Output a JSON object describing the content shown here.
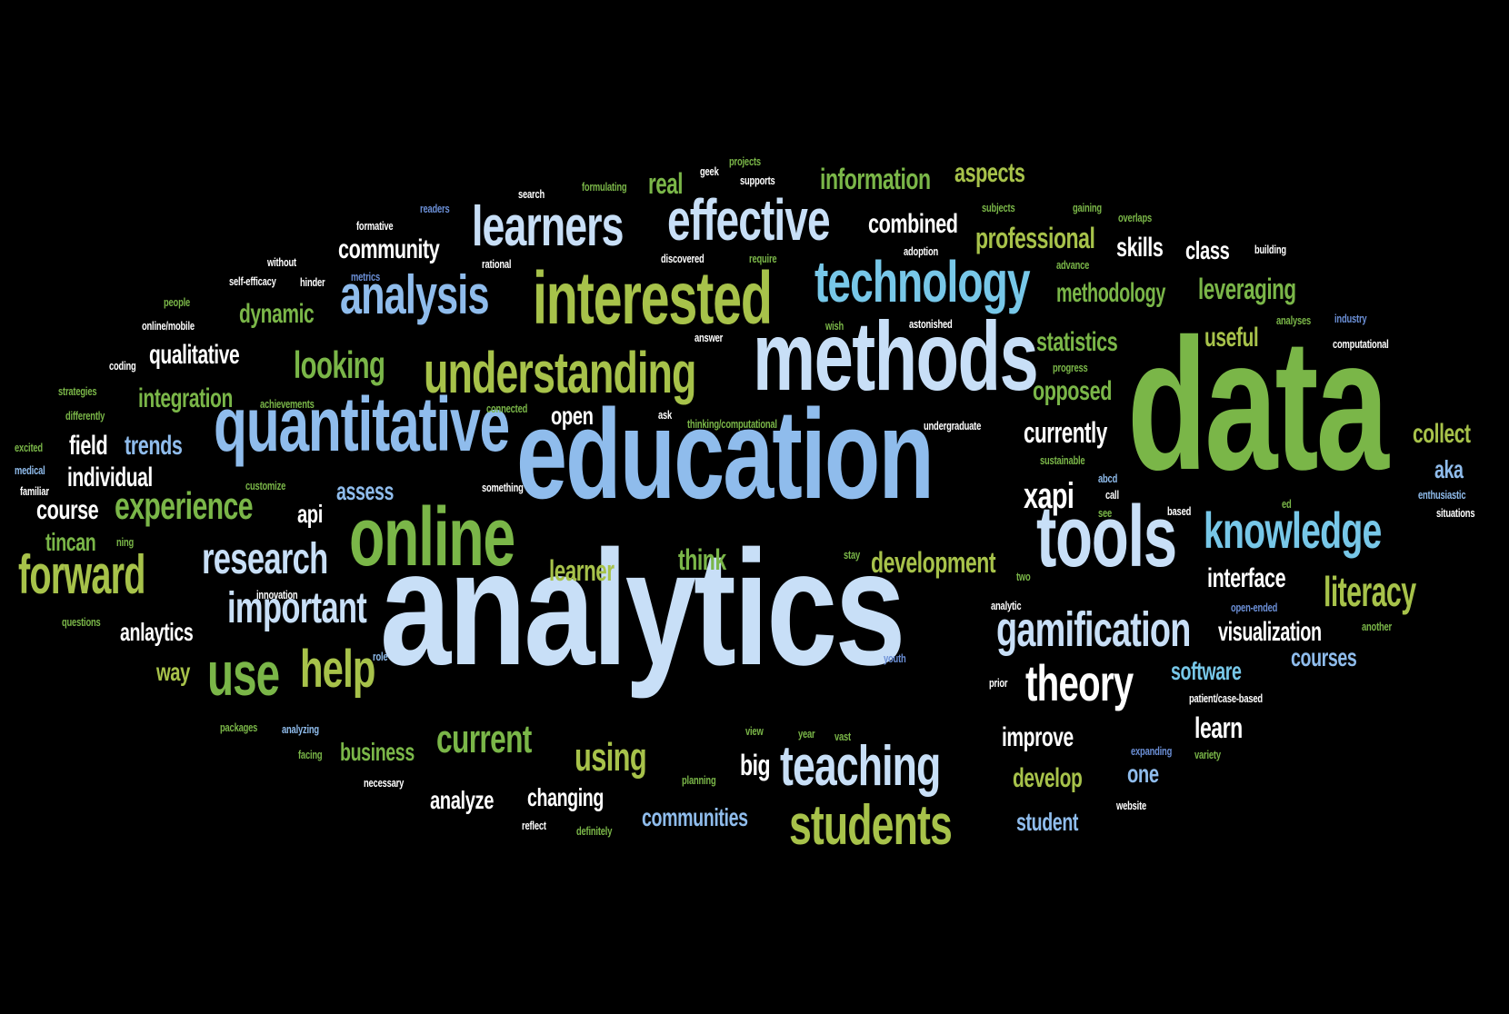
{
  "words": [
    {
      "text": "analytics",
      "color": "pale-blue"
    },
    {
      "text": "education",
      "color": "light-blue"
    },
    {
      "text": "data",
      "color": "green"
    },
    {
      "text": "methods",
      "color": "pale-blue"
    },
    {
      "text": "quantitative",
      "color": "light-blue"
    },
    {
      "text": "online",
      "color": "green"
    },
    {
      "text": "tools",
      "color": "pale-blue"
    },
    {
      "text": "interested",
      "color": "yellow-green"
    },
    {
      "text": "technology",
      "color": "cyan"
    },
    {
      "text": "understanding",
      "color": "yellow-green"
    },
    {
      "text": "effective",
      "color": "pale-blue"
    },
    {
      "text": "learners",
      "color": "pale-blue"
    },
    {
      "text": "analysis",
      "color": "light-blue"
    },
    {
      "text": "knowledge",
      "color": "cyan"
    },
    {
      "text": "forward",
      "color": "yellow-green"
    },
    {
      "text": "teaching",
      "color": "pale-blue"
    },
    {
      "text": "students",
      "color": "yellow-green"
    },
    {
      "text": "gamification",
      "color": "pale-blue"
    },
    {
      "text": "use",
      "color": "green"
    },
    {
      "text": "help",
      "color": "yellow-green"
    },
    {
      "text": "theory",
      "color": "white"
    },
    {
      "text": "important",
      "color": "pale-blue"
    },
    {
      "text": "research",
      "color": "pale-blue"
    },
    {
      "text": "experience",
      "color": "green"
    },
    {
      "text": "current",
      "color": "green"
    },
    {
      "text": "looking",
      "color": "green"
    },
    {
      "text": "using",
      "color": "yellow-green"
    },
    {
      "text": "literacy",
      "color": "yellow-green"
    },
    {
      "text": "xapi",
      "color": "white"
    },
    {
      "text": "community",
      "color": "white"
    },
    {
      "text": "combined",
      "color": "white"
    },
    {
      "text": "professional",
      "color": "yellow-green"
    },
    {
      "text": "skills",
      "color": "white"
    },
    {
      "text": "class",
      "color": "white"
    },
    {
      "text": "information",
      "color": "green"
    },
    {
      "text": "aspects",
      "color": "yellow-green"
    },
    {
      "text": "real",
      "color": "green"
    },
    {
      "text": "methodology",
      "color": "green"
    },
    {
      "text": "leveraging",
      "color": "green"
    },
    {
      "text": "statistics",
      "color": "green"
    },
    {
      "text": "useful",
      "color": "yellow-green"
    },
    {
      "text": "opposed",
      "color": "green"
    },
    {
      "text": "currently",
      "color": "white"
    },
    {
      "text": "collect",
      "color": "yellow-green"
    },
    {
      "text": "aka",
      "color": "light-blue"
    },
    {
      "text": "interface",
      "color": "white"
    },
    {
      "text": "visualization",
      "color": "white"
    },
    {
      "text": "courses",
      "color": "light-blue"
    },
    {
      "text": "software",
      "color": "cyan"
    },
    {
      "text": "learn",
      "color": "white"
    },
    {
      "text": "improve",
      "color": "white"
    },
    {
      "text": "develop",
      "color": "yellow-green"
    },
    {
      "text": "one",
      "color": "light-blue"
    },
    {
      "text": "student",
      "color": "light-blue"
    },
    {
      "text": "development",
      "color": "yellow-green"
    },
    {
      "text": "think",
      "color": "green"
    },
    {
      "text": "learner",
      "color": "yellow-green"
    },
    {
      "text": "open",
      "color": "white"
    },
    {
      "text": "assess",
      "color": "light-blue"
    },
    {
      "text": "api",
      "color": "white"
    },
    {
      "text": "dynamic",
      "color": "green"
    },
    {
      "text": "qualitative",
      "color": "white"
    },
    {
      "text": "integration",
      "color": "green"
    },
    {
      "text": "field",
      "color": "white"
    },
    {
      "text": "trends",
      "color": "light-blue"
    },
    {
      "text": "individual",
      "color": "white"
    },
    {
      "text": "course",
      "color": "white"
    },
    {
      "text": "tincan",
      "color": "green"
    },
    {
      "text": "anlaytics",
      "color": "white"
    },
    {
      "text": "way",
      "color": "yellow-green"
    },
    {
      "text": "business",
      "color": "green"
    },
    {
      "text": "big",
      "color": "white"
    },
    {
      "text": "analyze",
      "color": "white"
    },
    {
      "text": "changing",
      "color": "white"
    },
    {
      "text": "communities",
      "color": "light-blue"
    },
    {
      "text": "readers",
      "color": "dark-blue"
    },
    {
      "text": "search",
      "color": "white"
    },
    {
      "text": "formulating",
      "color": "green"
    },
    {
      "text": "geek",
      "color": "white"
    },
    {
      "text": "projects",
      "color": "green"
    },
    {
      "text": "supports",
      "color": "white"
    },
    {
      "text": "formative",
      "color": "white"
    },
    {
      "text": "without",
      "color": "white"
    },
    {
      "text": "rational",
      "color": "white"
    },
    {
      "text": "discovered",
      "color": "white"
    },
    {
      "text": "require",
      "color": "green"
    },
    {
      "text": "adoption",
      "color": "white"
    },
    {
      "text": "subjects",
      "color": "green"
    },
    {
      "text": "gaining",
      "color": "green"
    },
    {
      "text": "overlaps",
      "color": "green"
    },
    {
      "text": "building",
      "color": "white"
    },
    {
      "text": "advance",
      "color": "green"
    },
    {
      "text": "self-efficacy",
      "color": "white"
    },
    {
      "text": "hinder",
      "color": "white"
    },
    {
      "text": "metrics",
      "color": "dark-blue"
    },
    {
      "text": "people",
      "color": "green"
    },
    {
      "text": "online/mobile",
      "color": "white"
    },
    {
      "text": "wish",
      "color": "green"
    },
    {
      "text": "astonished",
      "color": "white"
    },
    {
      "text": "analyses",
      "color": "green"
    },
    {
      "text": "industry",
      "color": "dark-blue"
    },
    {
      "text": "computational",
      "color": "white"
    },
    {
      "text": "answer",
      "color": "white"
    },
    {
      "text": "progress",
      "color": "green"
    },
    {
      "text": "coding",
      "color": "white"
    },
    {
      "text": "strategies",
      "color": "green"
    },
    {
      "text": "achievements",
      "color": "green"
    },
    {
      "text": "differently",
      "color": "green"
    },
    {
      "text": "connected",
      "color": "green"
    },
    {
      "text": "ask",
      "color": "white"
    },
    {
      "text": "thinking/computational",
      "color": "green"
    },
    {
      "text": "undergraduate",
      "color": "white"
    },
    {
      "text": "sustainable",
      "color": "green"
    },
    {
      "text": "excited",
      "color": "green"
    },
    {
      "text": "medical",
      "color": "light-blue"
    },
    {
      "text": "familiar",
      "color": "white"
    },
    {
      "text": "customize",
      "color": "green"
    },
    {
      "text": "something",
      "color": "white"
    },
    {
      "text": "abcd",
      "color": "light-blue"
    },
    {
      "text": "call",
      "color": "white"
    },
    {
      "text": "see",
      "color": "green"
    },
    {
      "text": "based",
      "color": "white"
    },
    {
      "text": "ed",
      "color": "green"
    },
    {
      "text": "enthusiastic",
      "color": "light-blue"
    },
    {
      "text": "situations",
      "color": "white"
    },
    {
      "text": "ning",
      "color": "green"
    },
    {
      "text": "stay",
      "color": "green"
    },
    {
      "text": "two",
      "color": "green"
    },
    {
      "text": "innovation",
      "color": "white"
    },
    {
      "text": "analytic",
      "color": "white"
    },
    {
      "text": "open-ended",
      "color": "dark-blue"
    },
    {
      "text": "questions",
      "color": "green"
    },
    {
      "text": "another",
      "color": "green"
    },
    {
      "text": "role",
      "color": "light-blue"
    },
    {
      "text": "youth",
      "color": "dark-blue"
    },
    {
      "text": "prior",
      "color": "white"
    },
    {
      "text": "patient/case-based",
      "color": "white"
    },
    {
      "text": "packages",
      "color": "green"
    },
    {
      "text": "analyzing",
      "color": "light-blue"
    },
    {
      "text": "view",
      "color": "green"
    },
    {
      "text": "year",
      "color": "green"
    },
    {
      "text": "vast",
      "color": "green"
    },
    {
      "text": "expanding",
      "color": "dark-blue"
    },
    {
      "text": "variety",
      "color": "green"
    },
    {
      "text": "facing",
      "color": "green"
    },
    {
      "text": "necessary",
      "color": "white"
    },
    {
      "text": "planning",
      "color": "green"
    },
    {
      "text": "website",
      "color": "white"
    },
    {
      "text": "reflect",
      "color": "white"
    },
    {
      "text": "definitely",
      "color": "green"
    }
  ]
}
